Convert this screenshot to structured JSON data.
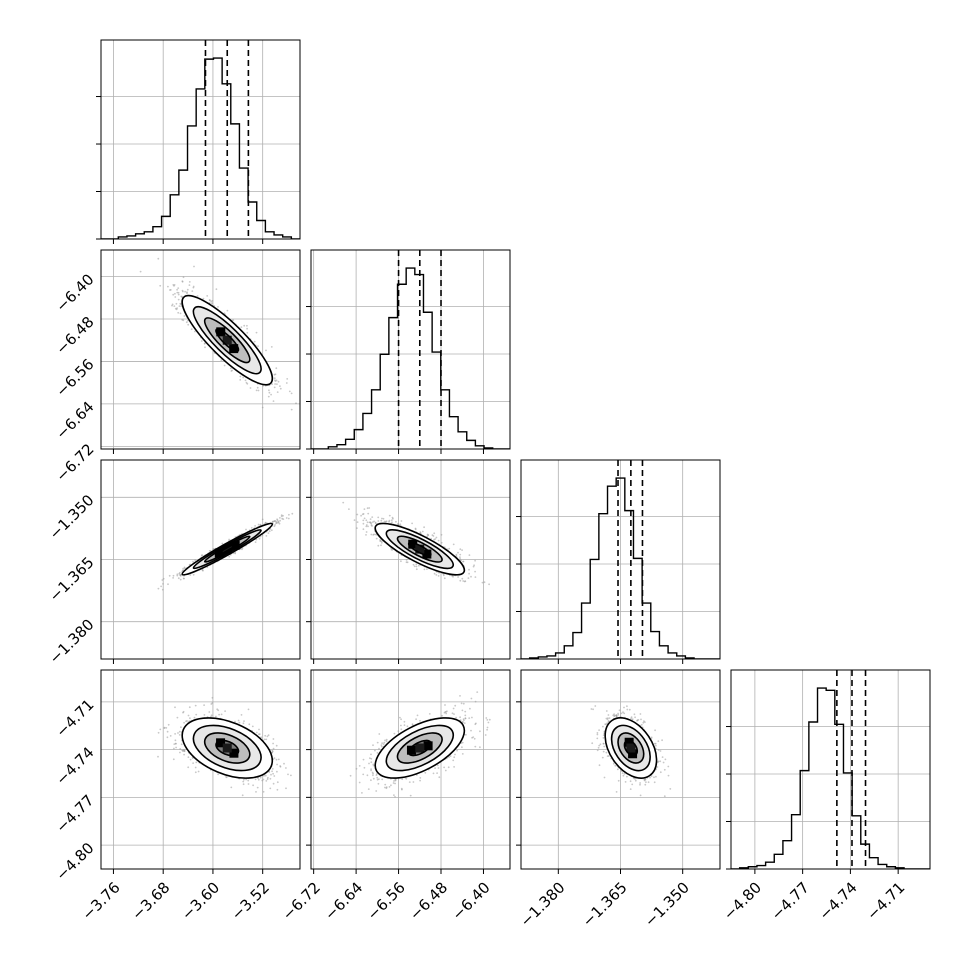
{
  "chart_data": {
    "type": "corner",
    "title": "",
    "grid": true,
    "parameters": [
      {
        "index": 0,
        "range": [
          -3.78,
          -3.46
        ],
        "ticks": [
          -3.76,
          -3.68,
          -3.6,
          -3.52
        ],
        "tick_labels": [
          "−3.76",
          "−3.68",
          "−3.60",
          "−3.52"
        ],
        "median": -3.577,
        "q16": -3.612,
        "q84": -3.543
      },
      {
        "index": 1,
        "range": [
          -6.725,
          -6.35
        ],
        "ticks": [
          -6.72,
          -6.64,
          -6.56,
          -6.48,
          -6.4
        ],
        "tick_labels": [
          "−6.72",
          "−6.64",
          "−6.56",
          "−6.48",
          "−6.40"
        ],
        "median": -6.52,
        "q16": -6.56,
        "q84": -6.48
      },
      {
        "index": 2,
        "range": [
          -1.389,
          -1.341
        ],
        "ticks": [
          -1.38,
          -1.365,
          -1.35
        ],
        "tick_labels": [
          "−1.380",
          "−1.365",
          "−1.350"
        ],
        "median": -1.3625,
        "q16": -1.3656,
        "q84": -1.3597
      },
      {
        "index": 3,
        "range": [
          -4.815,
          -4.69
        ],
        "ticks": [
          -4.8,
          -4.77,
          -4.74,
          -4.71
        ],
        "tick_labels": [
          "−4.80",
          "−4.77",
          "−4.74",
          "−4.71"
        ],
        "median": -4.739,
        "q16": -4.7485,
        "q84": -4.7305
      }
    ],
    "histograms": [
      {
        "param": 0,
        "bin_range": [
          -3.78,
          -3.46
        ],
        "counts": [
          0,
          0,
          2,
          3,
          5,
          7,
          12,
          22,
          43,
          67,
          110,
          146,
          175,
          176,
          151,
          112,
          69,
          36,
          18,
          7,
          4,
          2,
          0
        ]
      },
      {
        "param": 1,
        "bin_range": [
          -6.725,
          -6.35
        ],
        "counts": [
          0,
          0,
          2,
          4,
          9,
          18,
          33,
          55,
          88,
          122,
          153,
          168,
          162,
          127,
          90,
          55,
          30,
          16,
          8,
          3,
          1,
          0,
          0
        ]
      },
      {
        "param": 2,
        "bin_range": [
          -1.389,
          -1.341
        ],
        "counts": [
          0,
          1,
          2,
          3,
          6,
          13,
          26,
          55,
          98,
          143,
          170,
          178,
          146,
          99,
          55,
          27,
          13,
          6,
          3,
          1,
          0,
          0,
          0
        ]
      },
      {
        "param": 3,
        "bin_range": [
          -4.815,
          -4.69
        ],
        "counts": [
          0,
          1,
          2,
          3,
          6,
          13,
          25,
          48,
          87,
          130,
          160,
          158,
          128,
          85,
          47,
          22,
          10,
          4,
          2,
          1,
          0,
          0,
          0
        ]
      }
    ],
    "pairs": [
      {
        "x": 0,
        "y": 1,
        "correlation": -0.86
      },
      {
        "x": 0,
        "y": 2,
        "correlation": 0.97
      },
      {
        "x": 1,
        "y": 2,
        "correlation": -0.82
      },
      {
        "x": 0,
        "y": 3,
        "correlation": -0.42
      },
      {
        "x": 1,
        "y": 3,
        "correlation": 0.58
      },
      {
        "x": 2,
        "y": 3,
        "correlation": -0.4
      }
    ],
    "contour_levels_sigma": [
      0.5,
      1.0,
      1.5,
      2.0
    ],
    "colors": {
      "ink": "#000000",
      "grid": "#b0b0b0",
      "points": "#9a9a9a",
      "fills": [
        "#ffffff",
        "#e8e8e8",
        "#bdbdbd",
        "#7a7a7a",
        "#3a3a3a"
      ],
      "dense": "#000000"
    }
  }
}
